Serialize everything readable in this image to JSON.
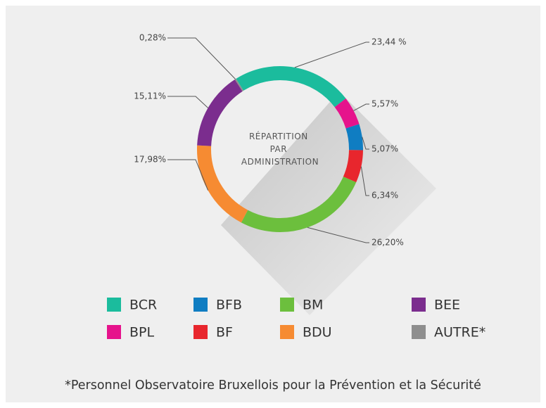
{
  "chart_data": {
    "type": "donut",
    "center_label": [
      "RÉPARTITION",
      "PAR",
      "ADMINISTRATION"
    ],
    "categories": [
      "BCR",
      "BPL",
      "BFB",
      "BF",
      "BM",
      "BDU",
      "BEE",
      "AUTRE*"
    ],
    "values": [
      23.44,
      5.57,
      5.07,
      6.34,
      26.2,
      17.98,
      15.11,
      0.28
    ],
    "value_labels": [
      "23,44 %",
      "5,57%",
      "5,07%",
      "6,34%",
      "26,20%",
      "17,98%",
      "15,11%",
      "0,28%"
    ],
    "colors": [
      "#1bbc9d",
      "#e6138c",
      "#0f7dc2",
      "#e8262d",
      "#6cbf3d",
      "#f68b32",
      "#7b2d8e",
      "#8e8e8e"
    ],
    "footnote": "*Personnel Observatoire Bruxellois pour la Prévention et la Sécurité"
  }
}
